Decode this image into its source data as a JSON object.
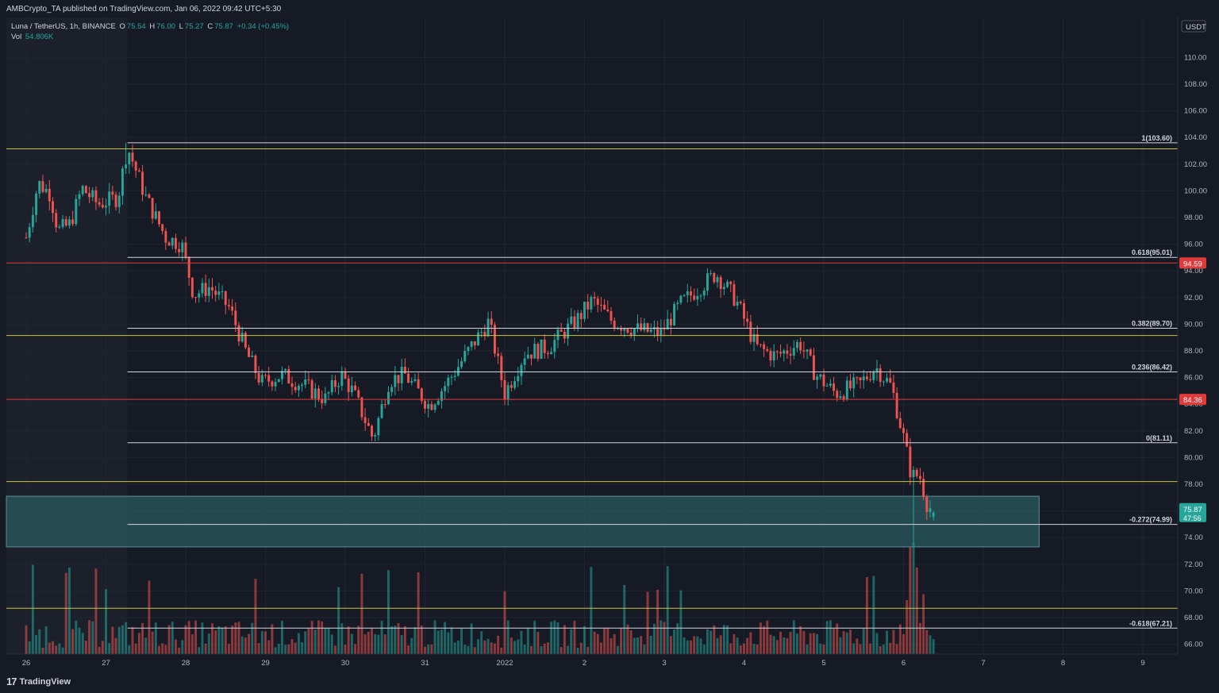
{
  "header": {
    "publisher_line": "AMBCrypto_TA published on TradingView.com, Jan 06, 2022 09:42 UTC+5:30",
    "symbol": "Luna / TetherUS, 1h, BINANCE",
    "o_label": "O",
    "o_value": "75.54",
    "h_label": "H",
    "h_value": "76.00",
    "l_label": "L",
    "l_value": "75.27",
    "c_label": "C",
    "c_value": "75.87",
    "change": "+0.34 (+0.45%)",
    "vol_label": "Vol",
    "vol_value": "54.806K"
  },
  "footer": {
    "logo_text": "TradingView",
    "logo_mark": "17"
  },
  "colors": {
    "background": "#161a25",
    "up": "#26a69a",
    "down": "#ef5350",
    "fib_line": "#d1d4dc",
    "yellow_line": "#c8c34a",
    "red_line": "#e03b3b",
    "zone": "#2b5a60"
  },
  "chart_data": {
    "type": "candlestick",
    "symbol": "Luna / TetherUS",
    "interval": "1h",
    "currency": "USDT",
    "ylim": [
      65.5,
      113
    ],
    "y_ticks": [
      "110.00",
      "108.00",
      "106.00",
      "104.00",
      "102.00",
      "100.00",
      "98.00",
      "96.00",
      "94.00",
      "92.00",
      "90.00",
      "88.00",
      "86.00",
      "84.00",
      "82.00",
      "80.00",
      "78.00",
      "76.00",
      "74.00",
      "72.00",
      "70.00",
      "68.00",
      "66.00"
    ],
    "x_ticks": [
      "26",
      "27",
      "28",
      "29",
      "30",
      "31",
      "2022",
      "2",
      "3",
      "4",
      "5",
      "6",
      "7",
      "8",
      "9"
    ],
    "close_trajectory": [
      {
        "t": 0,
        "p": 96.5
      },
      {
        "t": 0.15,
        "p": 100.6
      },
      {
        "t": 0.3,
        "p": 99.8
      },
      {
        "t": 0.4,
        "p": 97.0
      },
      {
        "t": 0.55,
        "p": 97.5
      },
      {
        "t": 0.7,
        "p": 100.2
      },
      {
        "t": 0.9,
        "p": 99.0
      },
      {
        "t": 1.15,
        "p": 99.5
      },
      {
        "t": 1.27,
        "p": 103.3
      },
      {
        "t": 1.5,
        "p": 99.5
      },
      {
        "t": 1.75,
        "p": 96.5
      },
      {
        "t": 1.95,
        "p": 96.0
      },
      {
        "t": 2.1,
        "p": 92.2
      },
      {
        "t": 2.3,
        "p": 92.8
      },
      {
        "t": 2.55,
        "p": 91.2
      },
      {
        "t": 2.75,
        "p": 88.0
      },
      {
        "t": 2.95,
        "p": 85.6
      },
      {
        "t": 3.2,
        "p": 86.2
      },
      {
        "t": 3.45,
        "p": 85.5
      },
      {
        "t": 3.75,
        "p": 84.4
      },
      {
        "t": 3.95,
        "p": 86.2
      },
      {
        "t": 4.1,
        "p": 84.9
      },
      {
        "t": 4.35,
        "p": 81.4
      },
      {
        "t": 4.55,
        "p": 85.8
      },
      {
        "t": 4.75,
        "p": 86.2
      },
      {
        "t": 5.05,
        "p": 83.9
      },
      {
        "t": 5.3,
        "p": 85.8
      },
      {
        "t": 5.6,
        "p": 88.5
      },
      {
        "t": 5.8,
        "p": 90.2
      },
      {
        "t": 6.0,
        "p": 84.8
      },
      {
        "t": 6.25,
        "p": 87.8
      },
      {
        "t": 6.55,
        "p": 88.3
      },
      {
        "t": 6.9,
        "p": 90.3
      },
      {
        "t": 7.1,
        "p": 91.8
      },
      {
        "t": 7.35,
        "p": 90.2
      },
      {
        "t": 7.65,
        "p": 89.6
      },
      {
        "t": 7.95,
        "p": 89.3
      },
      {
        "t": 8.2,
        "p": 91.5
      },
      {
        "t": 8.45,
        "p": 92.8
      },
      {
        "t": 8.65,
        "p": 93.8
      },
      {
        "t": 8.9,
        "p": 91.8
      },
      {
        "t": 9.15,
        "p": 88.3
      },
      {
        "t": 9.4,
        "p": 87.6
      },
      {
        "t": 9.7,
        "p": 88.6
      },
      {
        "t": 9.9,
        "p": 86.2
      },
      {
        "t": 10.15,
        "p": 84.8
      },
      {
        "t": 10.45,
        "p": 85.5
      },
      {
        "t": 10.65,
        "p": 86.8
      },
      {
        "t": 10.85,
        "p": 85.3
      },
      {
        "t": 11.0,
        "p": 81.5
      },
      {
        "t": 11.1,
        "p": 78.6
      },
      {
        "t": 11.2,
        "p": 78.7
      },
      {
        "t": 11.3,
        "p": 76.4
      },
      {
        "t": 11.4,
        "p": 75.9
      }
    ],
    "extreme_wicks": [
      {
        "t": 1.27,
        "high": 103.6
      },
      {
        "t": 11.13,
        "low": 73.5
      }
    ],
    "fib_levels": [
      {
        "label": "1(103.60)",
        "price": 103.6
      },
      {
        "label": "0.618(95.01)",
        "price": 95.01
      },
      {
        "label": "0.382(89.70)",
        "price": 89.7
      },
      {
        "label": "0.236(86.42)",
        "price": 86.42
      },
      {
        "label": "0(81.11)",
        "price": 81.11
      },
      {
        "label": "-0.272(74.99)",
        "price": 74.99
      },
      {
        "label": "-0.618(67.21)",
        "price": 67.21
      }
    ],
    "horizontal_lines": [
      {
        "price": 103.15,
        "color": "yellow"
      },
      {
        "price": 94.59,
        "color": "red",
        "label": "94.59"
      },
      {
        "price": 89.15,
        "color": "yellow"
      },
      {
        "price": 84.36,
        "color": "red",
        "label": "84.36"
      },
      {
        "price": 78.2,
        "color": "yellow"
      },
      {
        "price": 68.7,
        "color": "yellow"
      }
    ],
    "zone": {
      "from_price": 73.3,
      "to_price": 77.1,
      "until_t": 12.7
    },
    "current_price": {
      "value": "75.87",
      "countdown": "47:56"
    },
    "volume": {
      "last": "54.806K"
    }
  }
}
